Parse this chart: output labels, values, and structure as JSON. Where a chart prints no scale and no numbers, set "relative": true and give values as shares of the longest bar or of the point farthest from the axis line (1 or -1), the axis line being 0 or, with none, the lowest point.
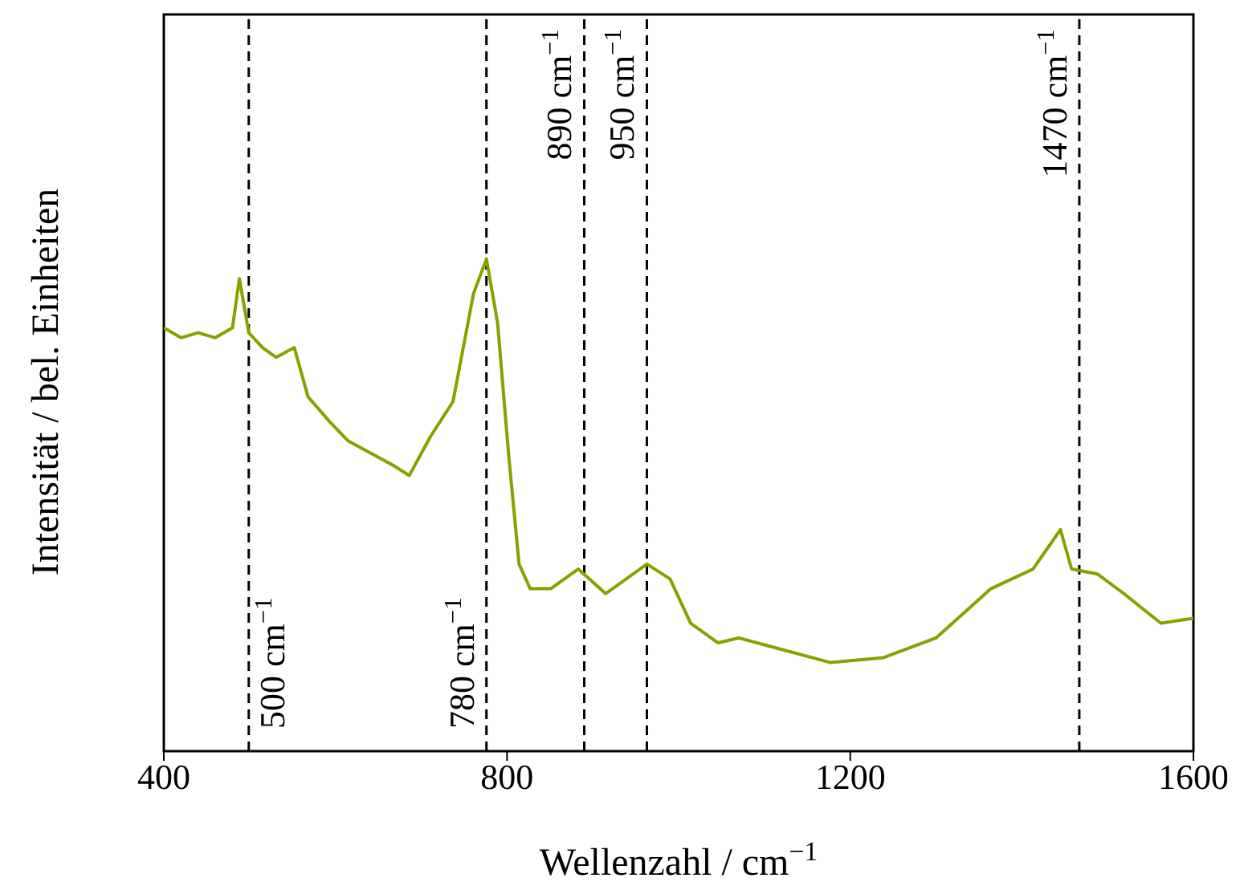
{
  "chart_data": {
    "type": "line",
    "relative": true,
    "xlabel": "Wellenzahl / cm$^{−1}$",
    "ylabel": "Intensität / bel. Einheiten",
    "xlim": [
      400,
      1600
    ],
    "xticks": [
      400,
      800,
      1200,
      1600
    ],
    "marker": "none",
    "line_style": "solid",
    "series": [
      {
        "color": "#8c9f00",
        "x": [
          400,
          420,
          440,
          460,
          480,
          488,
          499,
          515,
          531,
          552,
          568,
          593,
          615,
          636,
          668,
          686,
          711,
          737,
          761,
          776,
          789,
          802,
          814,
          827,
          851,
          883,
          915,
          963,
          990,
          1014,
          1046,
          1070,
          1113,
          1177,
          1239,
          1300,
          1364,
          1413,
          1445,
          1458,
          1488,
          1519,
          1562,
          1600
        ],
        "values": [
          0.86,
          0.84,
          0.85,
          0.84,
          0.86,
          0.96,
          0.85,
          0.82,
          0.8,
          0.82,
          0.72,
          0.67,
          0.63,
          0.61,
          0.58,
          0.56,
          0.64,
          0.71,
          0.93,
          1,
          0.87,
          0.6,
          0.38,
          0.33,
          0.33,
          0.37,
          0.32,
          0.38,
          0.35,
          0.26,
          0.22,
          0.23,
          0.21,
          0.18,
          0.19,
          0.23,
          0.33,
          0.37,
          0.45,
          0.37,
          0.36,
          0.32,
          0.26,
          0.27
        ]
      }
    ],
    "ref_lines": [
      {
        "axis": "x",
        "value": 499,
        "label": "500 cm$^{−1}$",
        "color": "#000000",
        "line_style": "dashed"
      },
      {
        "axis": "x",
        "value": 776,
        "label": "780 cm$^{−1}$",
        "color": "#000000",
        "line_style": "dashed"
      },
      {
        "axis": "x",
        "value": 890,
        "label": "890 cm$^{−1}$",
        "color": "#000000",
        "line_style": "dashed"
      },
      {
        "axis": "x",
        "value": 963,
        "label": "950 cm$^{−1}$",
        "color": "#000000",
        "line_style": "dashed"
      },
      {
        "axis": "x",
        "value": 1467,
        "label": "1470 cm$^{−1}$",
        "color": "#000000",
        "line_style": "dashed"
      }
    ]
  }
}
